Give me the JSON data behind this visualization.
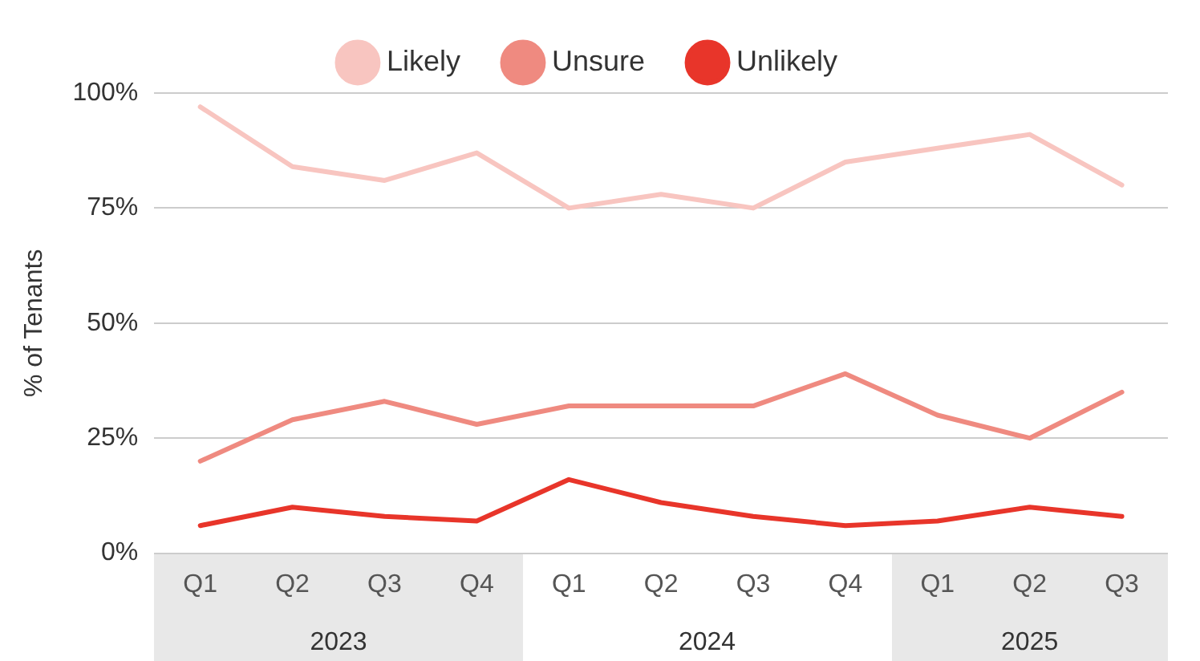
{
  "chart_data": {
    "type": "line",
    "ylabel": "% of Tenants",
    "categories": [
      "Q1",
      "Q2",
      "Q3",
      "Q4",
      "Q1",
      "Q2",
      "Q3",
      "Q4",
      "Q1",
      "Q2",
      "Q3"
    ],
    "series": [
      {
        "name": "Likely",
        "color": "#f8c5c0",
        "values": [
          97,
          84,
          81,
          87,
          75,
          78,
          75,
          85,
          88,
          91,
          80
        ]
      },
      {
        "name": "Unsure",
        "color": "#ef8a80",
        "values": [
          20,
          29,
          33,
          28,
          32,
          32,
          32,
          39,
          30,
          25,
          35
        ]
      },
      {
        "name": "Unlikely",
        "color": "#e8352a",
        "values": [
          6,
          10,
          8,
          7,
          16,
          11,
          8,
          6,
          7,
          10,
          8
        ]
      }
    ],
    "ylim": [
      0,
      100
    ],
    "yticks": [
      {
        "value": 0,
        "label": "0%"
      },
      {
        "value": 25,
        "label": "25%"
      },
      {
        "value": 50,
        "label": "50%"
      },
      {
        "value": 75,
        "label": "75%"
      },
      {
        "value": 100,
        "label": "100%"
      }
    ],
    "annotations": [
      "2023",
      "2024",
      "2025"
    ],
    "grid": "y",
    "legend": "top",
    "marker": "none",
    "line_style": "solid"
  }
}
